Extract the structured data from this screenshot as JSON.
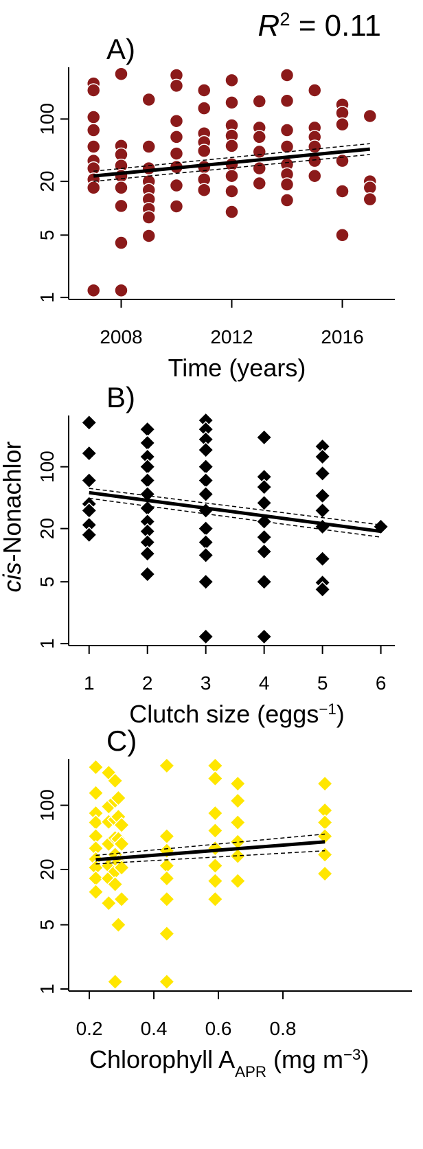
{
  "chart_data": [
    {
      "type": "scatter",
      "panel_label": "A)",
      "annotation": [
        {
          "text": "R",
          "style": "italic"
        },
        {
          "text": "2",
          "style": "sup"
        },
        {
          "text": " = 0.11"
        }
      ],
      "x_label": [
        {
          "text": "Time (years)"
        }
      ],
      "xlim": [
        2006.1,
        2017.9
      ],
      "xticks": [
        2008,
        2012,
        2016
      ],
      "ylim": [
        0.95,
        380
      ],
      "yticks": [
        1,
        5,
        20,
        100
      ],
      "log_y": true,
      "series": [
        {
          "marker": "circle",
          "color": "#8b1a1a",
          "x": [
            2007,
            2007,
            2007,
            2007,
            2007,
            2007,
            2007,
            2007,
            2007,
            2007,
            2008,
            2008,
            2008,
            2008,
            2008,
            2008,
            2008,
            2008,
            2008,
            2009,
            2009,
            2009,
            2009,
            2009,
            2009,
            2009,
            2009,
            2009,
            2010,
            2010,
            2010,
            2010,
            2010,
            2010,
            2010,
            2010,
            2011,
            2011,
            2011,
            2011,
            2011,
            2011,
            2011,
            2011,
            2012,
            2012,
            2012,
            2012,
            2012,
            2012,
            2012,
            2012,
            2012,
            2013,
            2013,
            2013,
            2013,
            2013,
            2013,
            2014,
            2014,
            2014,
            2014,
            2014,
            2014,
            2014,
            2014,
            2015,
            2015,
            2015,
            2015,
            2015,
            2015,
            2016,
            2016,
            2016,
            2016,
            2016,
            2016,
            2017,
            2017,
            2017,
            2017
          ],
          "values": [
            250,
            210,
            105,
            75,
            49,
            34,
            28,
            21,
            17,
            1.2,
            320,
            50,
            40,
            30,
            23,
            17,
            10.6,
            4.1,
            1.2,
            165,
            49,
            28,
            20,
            16,
            12.6,
            9.8,
            7.9,
            4.9,
            310,
            236,
            95,
            63,
            41,
            29,
            18,
            10.5,
            210,
            132,
            69,
            55,
            44,
            29,
            21,
            16,
            272,
            153,
            85,
            65,
            50,
            31,
            23,
            15.5,
            9.1,
            158,
            80,
            63,
            43,
            28,
            19,
            310,
            160,
            75,
            49,
            31,
            24,
            18.5,
            12.3,
            210,
            80,
            63,
            49,
            34,
            23,
            145,
            117,
            87,
            34,
            15.5,
            5,
            108,
            20,
            17,
            12.6
          ]
        },
        {
          "marker": "dashed",
          "color": "#000000",
          "x": [
            2007,
            2017
          ],
          "values": [
            26,
            53
          ]
        },
        {
          "marker": "dashed",
          "color": "#000000",
          "x": [
            2007,
            2017
          ],
          "values": [
            20,
            40
          ]
        },
        {
          "marker": "line",
          "color": "#000000",
          "x": [
            2007,
            2017
          ],
          "values": [
            23,
            46
          ]
        }
      ]
    },
    {
      "type": "scatter",
      "panel_label": "B)",
      "y_label": [
        {
          "text": "cis",
          "style": "italic"
        },
        {
          "text": "-Nonachlor"
        }
      ],
      "x_label": [
        {
          "text": "Clutch size (eggs"
        },
        {
          "text": "−1",
          "style": "sup"
        },
        {
          "text": ")"
        }
      ],
      "xlim": [
        0.65,
        6.24
      ],
      "xticks": [
        1,
        2,
        3,
        4,
        5,
        6
      ],
      "ylim": [
        0.95,
        380
      ],
      "yticks": [
        1,
        5,
        20,
        100
      ],
      "log_y": true,
      "series": [
        {
          "marker": "diamond",
          "color": "#000000",
          "x": [
            1,
            1,
            1,
            1,
            1,
            1,
            1,
            2,
            2,
            2,
            2,
            2,
            2,
            2,
            2,
            2,
            2,
            2,
            2,
            3,
            3,
            3,
            3,
            3,
            3,
            3,
            3,
            3,
            3,
            3,
            3,
            3,
            4,
            4,
            4,
            4,
            4,
            4,
            4,
            4,
            4,
            5,
            5,
            5,
            5,
            5,
            5,
            5,
            5,
            5,
            6
          ],
          "values": [
            316,
            142,
            70,
            38,
            32,
            22,
            17,
            265,
            186,
            130,
            100,
            70,
            49,
            34,
            24,
            18.6,
            14,
            10.4,
            6.1,
            335,
            265,
            204,
            155,
            100,
            70,
            49,
            32,
            20,
            14,
            10,
            5,
            1.2,
            215,
            77,
            59,
            39,
            24,
            16,
            11,
            5,
            1.2,
            170,
            130,
            84,
            47,
            32,
            21,
            9.1,
            4.9,
            4.1,
            21
          ]
        },
        {
          "marker": "dashed",
          "color": "#000000",
          "x": [
            1,
            6
          ],
          "values": [
            57,
            22
          ]
        },
        {
          "marker": "dashed",
          "color": "#000000",
          "x": [
            1,
            6
          ],
          "values": [
            44,
            16
          ]
        },
        {
          "marker": "line",
          "color": "#000000",
          "x": [
            1,
            6
          ],
          "values": [
            51,
            18.6
          ]
        }
      ]
    },
    {
      "type": "scatter",
      "panel_label": "C)",
      "x_label": [
        {
          "text": "Chlorophyll A"
        },
        {
          "text": "APR",
          "style": "sub"
        },
        {
          "text": " (mg m"
        },
        {
          "text": "−3",
          "style": "sup"
        },
        {
          "text": ")"
        }
      ],
      "xlim": [
        0.136,
        1.2
      ],
      "xticks": [
        0.2,
        0.4,
        0.6,
        0.8
      ],
      "ylim": [
        0.95,
        320
      ],
      "yticks": [
        1,
        5,
        20,
        100
      ],
      "log_y": true,
      "series": [
        {
          "marker": "diamond",
          "color": "#ffe600",
          "x": [
            0.22,
            0.22,
            0.22,
            0.22,
            0.22,
            0.22,
            0.22,
            0.22,
            0.22,
            0.22,
            0.26,
            0.26,
            0.26,
            0.26,
            0.26,
            0.26,
            0.26,
            0.28,
            0.28,
            0.28,
            0.28,
            0.28,
            0.28,
            0.28,
            0.28,
            0.29,
            0.29,
            0.29,
            0.29,
            0.29,
            0.3,
            0.3,
            0.3,
            0.3,
            0.44,
            0.44,
            0.44,
            0.44,
            0.44,
            0.44,
            0.44,
            0.44,
            0.59,
            0.59,
            0.59,
            0.59,
            0.59,
            0.59,
            0.59,
            0.59,
            0.66,
            0.66,
            0.66,
            0.66,
            0.66,
            0.66,
            0.93,
            0.93,
            0.93,
            0.93,
            0.93,
            0.93
          ],
          "values": [
            260,
            136,
            82,
            65,
            46,
            34,
            26,
            21,
            16,
            11.4,
            226,
            97,
            66,
            38,
            22,
            16,
            8.6,
            185,
            112,
            70,
            44,
            29,
            19,
            13.8,
            1.2,
            120,
            75,
            43,
            24,
            5,
            61,
            38,
            21,
            9.5,
            270,
            46,
            32,
            22,
            16,
            9.5,
            4,
            1.2,
            270,
            196,
            82,
            53,
            34,
            22,
            15,
            9.5,
            172,
            112,
            65,
            40,
            28,
            15,
            172,
            88,
            65,
            46,
            29,
            18
          ]
        },
        {
          "marker": "dashed",
          "color": "#000000",
          "x": [
            0.22,
            0.93
          ],
          "values": [
            28.5,
            48.6
          ]
        },
        {
          "marker": "dashed",
          "color": "#000000",
          "x": [
            0.22,
            0.93
          ],
          "values": [
            23,
            32
          ]
        },
        {
          "marker": "line",
          "color": "#000000",
          "x": [
            0.22,
            0.93
          ],
          "values": [
            25.5,
            40
          ]
        }
      ]
    }
  ]
}
